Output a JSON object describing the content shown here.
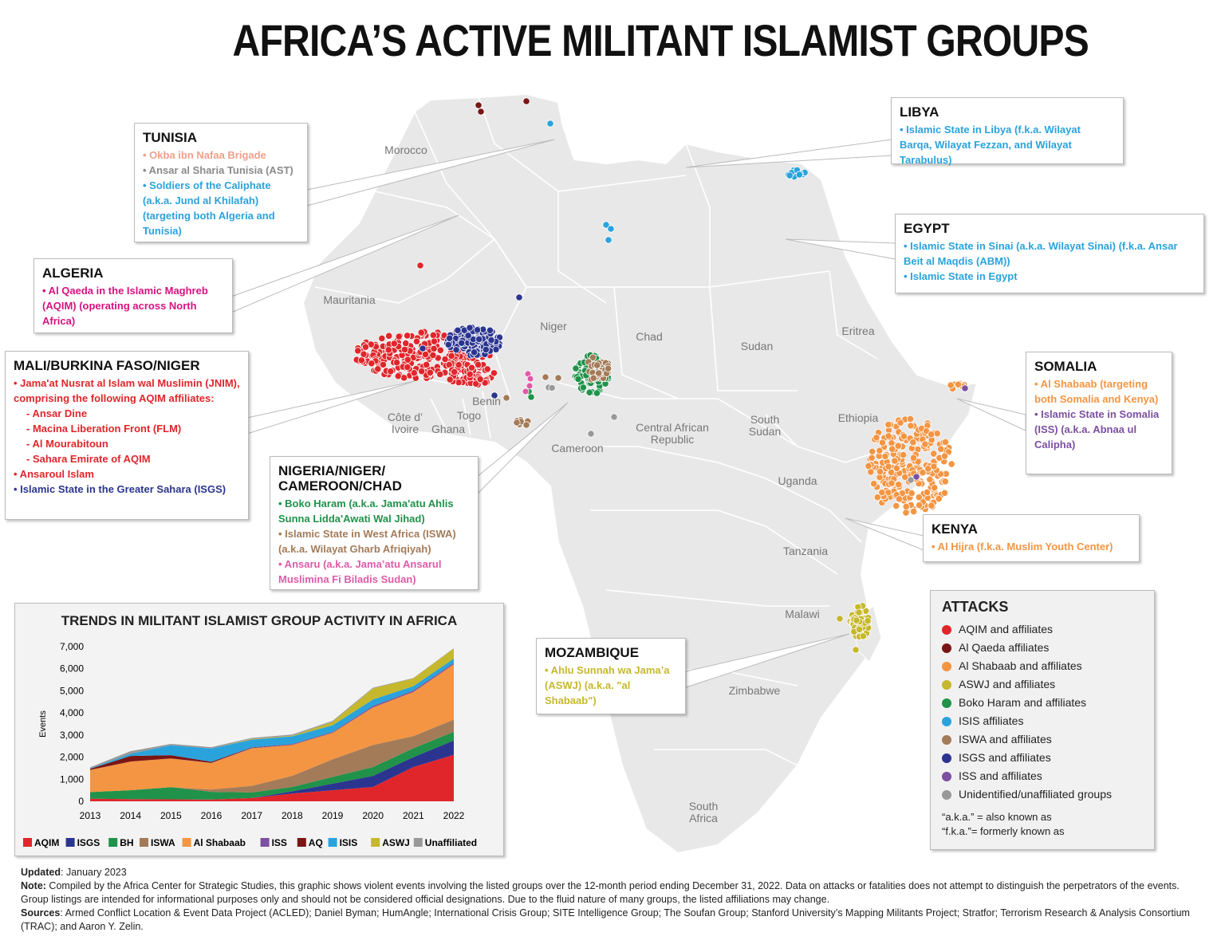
{
  "title": "AFRICA’S ACTIVE MILITANT ISLAMIST GROUPS",
  "countries": [
    {
      "key": "morocco",
      "label": "Morocco"
    },
    {
      "key": "mauritania",
      "label": "Mauritania"
    },
    {
      "key": "niger",
      "label": "Niger"
    },
    {
      "key": "chad",
      "label": "Chad"
    },
    {
      "key": "sudan",
      "label": "Sudan"
    },
    {
      "key": "eritrea",
      "label": "Eritrea"
    },
    {
      "key": "ethiopia",
      "label": "Ethiopia"
    },
    {
      "key": "south_sudan",
      "label": "South Sudan"
    },
    {
      "key": "car",
      "label": "Central African Republic"
    },
    {
      "key": "cameroon",
      "label": "Cameroon"
    },
    {
      "key": "benin",
      "label": "Benin"
    },
    {
      "key": "togo",
      "label": "Togo"
    },
    {
      "key": "ghana",
      "label": "Ghana"
    },
    {
      "key": "cote",
      "label": "Côte d’ Ivoire"
    },
    {
      "key": "uganda",
      "label": "Uganda"
    },
    {
      "key": "tanzania",
      "label": "Tanzania"
    },
    {
      "key": "malawi",
      "label": "Malawi"
    },
    {
      "key": "zimbabwe",
      "label": "Zimbabwe"
    },
    {
      "key": "south_africa",
      "label": "South Africa"
    }
  ],
  "callouts": {
    "tunisia": {
      "heading": "TUNISIA",
      "items": [
        {
          "text": "Okba ibn Nafaa Brigade",
          "color": "#f0a08a"
        },
        {
          "text": "Ansar al Sharia Tunisia (AST)",
          "color": "#8a8a8a"
        },
        {
          "text": "Soldiers of the Caliphate (a.k.a. Jund al Khilafah) (targeting both Algeria and Tunisia)",
          "color": "#2aa3dc"
        }
      ]
    },
    "algeria": {
      "heading": "ALGERIA",
      "items": [
        {
          "text": "Al Qaeda in the Islamic Maghreb (AQIM) (operating across North Africa)",
          "color": "#d6127f"
        }
      ]
    },
    "mali": {
      "heading": "MALI/BURKINA FASO/NIGER",
      "items": [
        {
          "text": "Jama'at Nusrat al Islam wal Muslimin (JNIM), comprising the following AQIM affiliates:",
          "color": "#e0262b"
        },
        {
          "text": "Ansar Dine",
          "color": "#e0262b",
          "sub": true
        },
        {
          "text": "Macina Liberation Front (FLM)",
          "color": "#e0262b",
          "sub": true
        },
        {
          "text": "Al Mourabitoun",
          "color": "#e0262b",
          "sub": true
        },
        {
          "text": "Sahara Emirate of AQIM",
          "color": "#e0262b",
          "sub": true
        },
        {
          "text": "Ansaroul Islam",
          "color": "#e0262b"
        },
        {
          "text": "Islamic State in the Greater Sahara (ISGS)",
          "color": "#2b3590"
        }
      ]
    },
    "nigeria": {
      "heading": "NIGERIA/NIGER/ CAMEROON/CHAD",
      "items": [
        {
          "text": "Boko Haram (a.k.a. Jama'atu Ahlis Sunna Lidda'Awati Wal Jihad)",
          "color": "#20924a"
        },
        {
          "text": "Islamic State in West Africa (ISWA) (a.k.a. Wilayat Gharb Afriqiyah)",
          "color": "#a37b59"
        },
        {
          "text": "Ansaru (a.k.a. Jama’atu Ansarul Muslimina Fi Biladis Sudan)",
          "color": "#e05aa8"
        }
      ]
    },
    "libya": {
      "heading": "LIBYA",
      "items": [
        {
          "text": "Islamic State in Libya (f.k.a. Wilayat Barqa, Wilayat Fezzan, and Wilayat Tarabulus)",
          "color": "#2aa3dc"
        }
      ]
    },
    "egypt": {
      "heading": "EGYPT",
      "items": [
        {
          "text": "Islamic State in Sinai (a.k.a. Wilayat Sinai) (f.k.a. Ansar Beit al Maqdis (ABM))",
          "color": "#2aa3dc"
        },
        {
          "text": "Islamic State in Egypt",
          "color": "#2aa3dc"
        }
      ]
    },
    "somalia": {
      "heading": "SOMALIA",
      "items": [
        {
          "text": "Al Shabaab (targeting both Somalia and Kenya)",
          "color": "#f39543"
        },
        {
          "text": "Islamic State in Somalia (ISS) (a.k.a. Abnaa ul Calipha)",
          "color": "#7c4fa1"
        }
      ]
    },
    "kenya": {
      "heading": "KENYA",
      "items": [
        {
          "text": "Al Hijra (f.k.a. Muslim Youth Center)",
          "color": "#f39543"
        }
      ]
    },
    "mozambique": {
      "heading": "MOZAMBIQUE",
      "items": [
        {
          "text": "Ahlu Sunnah wa Jama’a (ASWJ) (a.k.a. \"al Shabaab\")",
          "color": "#c6b82c"
        }
      ]
    }
  },
  "legend": {
    "heading": "ATTACKS",
    "items": [
      {
        "label": "AQIM and affiliates",
        "color": "#e0262b"
      },
      {
        "label": "Al Qaeda affiliates",
        "color": "#7a1515"
      },
      {
        "label": "Al Shabaab and affiliates",
        "color": "#f39543"
      },
      {
        "label": "ASWJ and affiliates",
        "color": "#c6b82c"
      },
      {
        "label": "Boko Haram and affiliates",
        "color": "#20924a"
      },
      {
        "label": "ISIS affiliates",
        "color": "#2aa3dc"
      },
      {
        "label": "ISWA and affiliates",
        "color": "#a37b59"
      },
      {
        "label": "ISGS and affiliates",
        "color": "#2b3590"
      },
      {
        "label": "ISS and affiliates",
        "color": "#7c4fa1"
      },
      {
        "label": "Unidentified/unaffiliated groups",
        "color": "#999999"
      }
    ],
    "note1": "“a.k.a.” = also known as",
    "note2": "“f.k.a.”= formerly known as"
  },
  "chart_data": {
    "type": "area",
    "title": "TRENDS IN MILITANT ISLAMIST GROUP ACTIVITY IN AFRICA",
    "ylabel": "Events",
    "xlabel": "",
    "ylim": [
      0,
      7000
    ],
    "yticks": [
      "0",
      "1,000",
      "2,000",
      "3,000",
      "4,000",
      "5,000",
      "6,000",
      "7,000"
    ],
    "x": [
      "2013",
      "2014",
      "2015",
      "2016",
      "2017",
      "2018",
      "2019",
      "2020",
      "2021",
      "2022"
    ],
    "stacked": true,
    "series": [
      {
        "name": "AQIM",
        "color": "#e0262b",
        "values": [
          120,
          100,
          90,
          80,
          150,
          350,
          500,
          650,
          1550,
          2100
        ]
      },
      {
        "name": "ISGS",
        "color": "#2b3590",
        "values": [
          0,
          0,
          0,
          0,
          0,
          100,
          300,
          500,
          450,
          650
        ]
      },
      {
        "name": "BH",
        "color": "#20924a",
        "values": [
          300,
          400,
          550,
          350,
          250,
          200,
          300,
          400,
          400,
          400
        ]
      },
      {
        "name": "ISWA",
        "color": "#a37b59",
        "values": [
          0,
          0,
          0,
          100,
          300,
          500,
          800,
          1000,
          550,
          550
        ]
      },
      {
        "name": "Al Shabaab",
        "color": "#f39543",
        "values": [
          1000,
          1300,
          1300,
          1200,
          1700,
          1400,
          1200,
          1700,
          2000,
          2500
        ]
      },
      {
        "name": "ISS",
        "color": "#7c4fa1",
        "values": [
          0,
          0,
          0,
          10,
          20,
          30,
          30,
          50,
          50,
          50
        ]
      },
      {
        "name": "AQ",
        "color": "#7a1515",
        "values": [
          50,
          250,
          150,
          50,
          20,
          10,
          10,
          10,
          10,
          10
        ]
      },
      {
        "name": "ISIS",
        "color": "#2aa3dc",
        "values": [
          20,
          100,
          450,
          600,
          350,
          350,
          300,
          300,
          200,
          200
        ]
      },
      {
        "name": "ASWJ",
        "color": "#c6b82c",
        "values": [
          0,
          0,
          0,
          0,
          30,
          30,
          150,
          500,
          350,
          450
        ]
      },
      {
        "name": "Unaffiliated",
        "color": "#999999",
        "values": [
          50,
          120,
          60,
          60,
          50,
          50,
          50,
          30,
          20,
          20
        ]
      }
    ]
  },
  "footer": {
    "updated_label": "Updated",
    "updated_value": ": January 2023",
    "note_label": "Note:",
    "note_text": " Compiled by the Africa Center for Strategic Studies, this graphic shows violent events involving the listed groups over the 12-month period ending December 31, 2022. Data on attacks or fatalities does not attempt to distinguish the perpetrators of the events. Group listings are intended for informational purposes only and should not be considered official designations. Due to the fluid nature of many groups, the listed affiliations may change.",
    "sources_label": "Sources",
    "sources_text": ": Armed Conflict Location & Event Data Project (ACLED); Daniel Byman; HumAngle; International Crisis Group; SITE Intelligence Group; The Soufan Group; Stanford University’s Mapping Militants Project; Stratfor; Terrorism Research & Analysis Consortium (TRAC); and Aaron Y. Zelin."
  }
}
